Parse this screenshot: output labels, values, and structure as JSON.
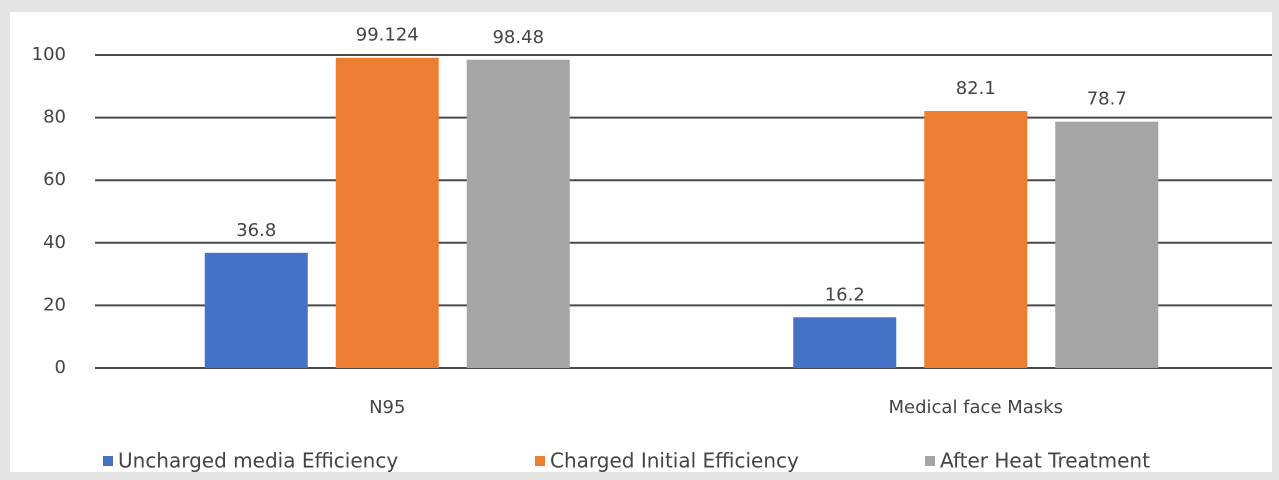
{
  "chart_data": {
    "type": "bar",
    "categories": [
      "N95",
      "Medical face Masks"
    ],
    "series": [
      {
        "name": "Uncharged media Efficiency",
        "color": "#4472c4",
        "values": [
          36.8,
          16.2
        ]
      },
      {
        "name": "Charged Initial Efficiency",
        "color": "#ed7d31",
        "values": [
          99.124,
          82.1
        ]
      },
      {
        "name": "After Heat Treatment",
        "color": "#a5a5a5",
        "values": [
          98.48,
          78.7
        ]
      }
    ],
    "ylim": [
      0,
      100
    ],
    "yticks": [
      0,
      20,
      40,
      60,
      80,
      100
    ],
    "grid": true,
    "legend": "bottom"
  }
}
